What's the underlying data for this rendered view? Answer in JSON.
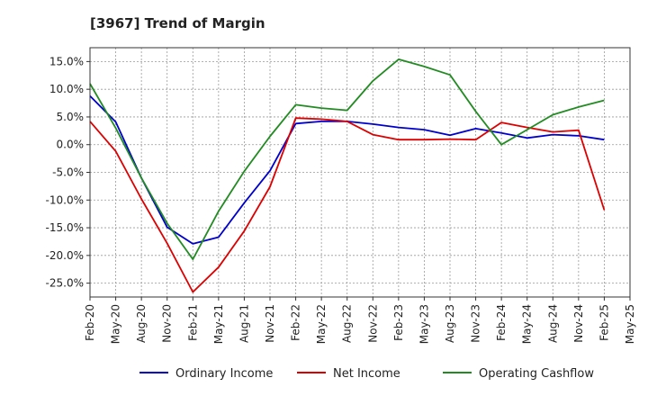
{
  "chart_data": {
    "type": "line",
    "title": "[3967]  Trend of Margin",
    "xlabel": "",
    "ylabel": "",
    "categories": [
      "Feb-20",
      "May-20",
      "Aug-20",
      "Nov-20",
      "Feb-21",
      "May-21",
      "Aug-21",
      "Nov-21",
      "Feb-22",
      "May-22",
      "Aug-22",
      "Nov-22",
      "Feb-23",
      "May-23",
      "Aug-23",
      "Nov-23",
      "Feb-24",
      "May-24",
      "Aug-24",
      "Nov-24",
      "Feb-25",
      "May-25"
    ],
    "y_ticks": [
      "15.0%",
      "10.0%",
      "5.0%",
      "0.0%",
      "-5.0%",
      "-10.0%",
      "-15.0%",
      "-20.0%",
      "-25.0%"
    ],
    "y_tick_values": [
      15,
      10,
      5,
      0,
      -5,
      -10,
      -15,
      -20,
      -25
    ],
    "ylim": [
      -27.5,
      17.5
    ],
    "grid": true,
    "legend_position": "bottom",
    "series": [
      {
        "name": "Ordinary Income",
        "color": "#0000cc",
        "values": [
          8.8,
          4.1,
          -6.0,
          -14.9,
          -17.9,
          -16.7,
          -10.5,
          -4.7,
          3.8,
          4.2,
          4.2,
          3.7,
          3.1,
          2.7,
          1.7,
          2.9,
          2.1,
          1.2,
          1.8,
          1.6,
          0.9,
          null
        ]
      },
      {
        "name": "Net Income",
        "color": "#dd0000",
        "values": [
          4.2,
          -1.2,
          -9.8,
          -17.8,
          -26.6,
          -22.1,
          -15.6,
          -7.6,
          4.8,
          4.6,
          4.2,
          1.8,
          0.9,
          0.9,
          1.0,
          0.9,
          4.0,
          3.1,
          2.3,
          2.6,
          -11.8,
          null
        ]
      },
      {
        "name": "Operating Cashflow",
        "color": "#228b22",
        "values": [
          11.0,
          3.0,
          -6.0,
          -14.2,
          -20.7,
          -12.0,
          -4.8,
          1.5,
          7.2,
          6.6,
          6.2,
          11.5,
          15.4,
          14.1,
          12.6,
          6.0,
          0.0,
          2.7,
          5.4,
          6.8,
          8.0,
          null
        ]
      }
    ]
  }
}
